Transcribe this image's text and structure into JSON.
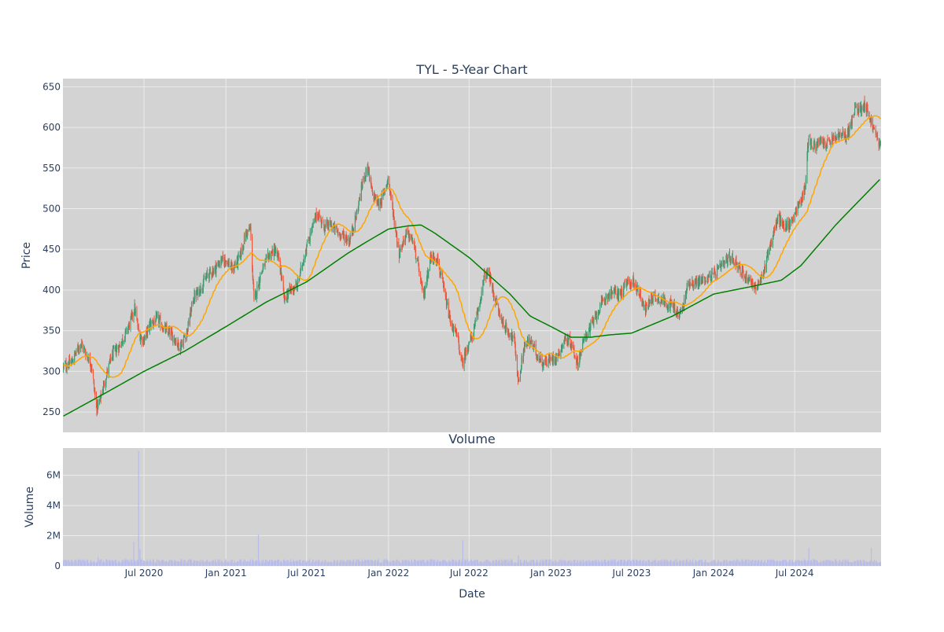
{
  "chart_data": [
    {
      "type": "candlestick",
      "title": "TYL - 5-Year Chart",
      "ylabel": "Price",
      "ylim": [
        225,
        660
      ],
      "yticks": [
        250,
        300,
        350,
        400,
        450,
        500,
        550,
        600,
        650
      ],
      "xlim": [
        "2020-01-01",
        "2025-01-11"
      ],
      "grid": true,
      "legend": "none",
      "colors": {
        "background": "#d3d3d3",
        "grid": "#ebebeb",
        "increasing": "#3d9970",
        "decreasing": "#ef553b",
        "ma_short": "#ffa500",
        "ma_long": "#008000",
        "text": "#2a3f5f"
      },
      "price_path": [
        [
          "2020-01-02",
          305
        ],
        [
          "2020-01-20",
          311
        ],
        [
          "2020-02-10",
          335
        ],
        [
          "2020-02-25",
          318
        ],
        [
          "2020-03-05",
          308
        ],
        [
          "2020-03-16",
          255
        ],
        [
          "2020-03-23",
          262
        ],
        [
          "2020-04-05",
          290
        ],
        [
          "2020-04-20",
          320
        ],
        [
          "2020-05-05",
          330
        ],
        [
          "2020-05-20",
          345
        ],
        [
          "2020-06-01",
          362
        ],
        [
          "2020-06-10",
          378
        ],
        [
          "2020-06-20",
          345
        ],
        [
          "2020-06-30",
          338
        ],
        [
          "2020-07-15",
          358
        ],
        [
          "2020-08-01",
          365
        ],
        [
          "2020-08-15",
          352
        ],
        [
          "2020-09-01",
          345
        ],
        [
          "2020-09-20",
          330
        ],
        [
          "2020-10-05",
          348
        ],
        [
          "2020-10-20",
          390
        ],
        [
          "2020-11-05",
          402
        ],
        [
          "2020-11-20",
          418
        ],
        [
          "2020-12-05",
          425
        ],
        [
          "2020-12-20",
          435
        ],
        [
          "2021-01-01",
          438
        ],
        [
          "2021-01-15",
          425
        ],
        [
          "2021-02-01",
          440
        ],
        [
          "2021-02-15",
          470
        ],
        [
          "2021-02-25",
          475
        ],
        [
          "2021-03-05",
          385
        ],
        [
          "2021-03-20",
          420
        ],
        [
          "2021-04-05",
          440
        ],
        [
          "2021-04-20",
          450
        ],
        [
          "2021-05-01",
          435
        ],
        [
          "2021-05-12",
          388
        ],
        [
          "2021-05-25",
          400
        ],
        [
          "2021-06-10",
          405
        ],
        [
          "2021-06-25",
          440
        ],
        [
          "2021-07-10",
          470
        ],
        [
          "2021-07-25",
          495
        ],
        [
          "2021-08-10",
          478
        ],
        [
          "2021-08-25",
          480
        ],
        [
          "2021-09-10",
          470
        ],
        [
          "2021-09-25",
          465
        ],
        [
          "2021-10-05",
          460
        ],
        [
          "2021-10-20",
          490
        ],
        [
          "2021-11-05",
          535
        ],
        [
          "2021-11-15",
          552
        ],
        [
          "2021-11-25",
          520
        ],
        [
          "2021-12-10",
          505
        ],
        [
          "2021-12-20",
          515
        ],
        [
          "2021-12-31",
          538
        ],
        [
          "2022-01-10",
          500
        ],
        [
          "2022-01-25",
          445
        ],
        [
          "2022-02-10",
          470
        ],
        [
          "2022-02-25",
          460
        ],
        [
          "2022-03-10",
          425
        ],
        [
          "2022-03-20",
          390
        ],
        [
          "2022-04-05",
          440
        ],
        [
          "2022-04-20",
          440
        ],
        [
          "2022-05-05",
          400
        ],
        [
          "2022-05-20",
          360
        ],
        [
          "2022-06-05",
          342
        ],
        [
          "2022-06-15",
          308
        ],
        [
          "2022-06-30",
          335
        ],
        [
          "2022-07-10",
          345
        ],
        [
          "2022-07-25",
          385
        ],
        [
          "2022-08-05",
          420
        ],
        [
          "2022-08-15",
          418
        ],
        [
          "2022-08-25",
          395
        ],
        [
          "2022-09-10",
          365
        ],
        [
          "2022-09-25",
          350
        ],
        [
          "2022-10-10",
          340
        ],
        [
          "2022-10-20",
          285
        ],
        [
          "2022-11-01",
          330
        ],
        [
          "2022-11-15",
          338
        ],
        [
          "2022-12-01",
          320
        ],
        [
          "2022-12-15",
          310
        ],
        [
          "2023-01-01",
          315
        ],
        [
          "2023-01-15",
          318
        ],
        [
          "2023-02-01",
          340
        ],
        [
          "2023-02-15",
          335
        ],
        [
          "2023-03-01",
          310
        ],
        [
          "2023-03-20",
          345
        ],
        [
          "2023-04-05",
          360
        ],
        [
          "2023-04-20",
          378
        ],
        [
          "2023-05-05",
          392
        ],
        [
          "2023-05-20",
          398
        ],
        [
          "2023-06-05",
          395
        ],
        [
          "2023-06-20",
          408
        ],
        [
          "2023-07-05",
          410
        ],
        [
          "2023-07-20",
          395
        ],
        [
          "2023-08-01",
          375
        ],
        [
          "2023-08-15",
          392
        ],
        [
          "2023-09-01",
          390
        ],
        [
          "2023-09-15",
          385
        ],
        [
          "2023-10-01",
          380
        ],
        [
          "2023-10-15",
          368
        ],
        [
          "2023-10-25",
          380
        ],
        [
          "2023-11-05",
          410
        ],
        [
          "2023-11-20",
          408
        ],
        [
          "2023-12-05",
          412
        ],
        [
          "2023-12-20",
          415
        ],
        [
          "2024-01-05",
          420
        ],
        [
          "2024-01-20",
          430
        ],
        [
          "2024-02-05",
          440
        ],
        [
          "2024-02-20",
          435
        ],
        [
          "2024-03-05",
          420
        ],
        [
          "2024-03-20",
          415
        ],
        [
          "2024-04-05",
          402
        ],
        [
          "2024-04-20",
          415
        ],
        [
          "2024-05-01",
          445
        ],
        [
          "2024-05-15",
          470
        ],
        [
          "2024-05-25",
          490
        ],
        [
          "2024-06-05",
          478
        ],
        [
          "2024-06-20",
          480
        ],
        [
          "2024-07-01",
          495
        ],
        [
          "2024-07-15",
          510
        ],
        [
          "2024-07-25",
          528
        ],
        [
          "2024-08-01",
          590
        ],
        [
          "2024-08-10",
          575
        ],
        [
          "2024-08-25",
          582
        ],
        [
          "2024-09-10",
          580
        ],
        [
          "2024-09-25",
          585
        ],
        [
          "2024-10-10",
          590
        ],
        [
          "2024-10-25",
          590
        ],
        [
          "2024-11-05",
          605
        ],
        [
          "2024-11-15",
          625
        ],
        [
          "2024-11-25",
          622
        ],
        [
          "2024-12-05",
          630
        ],
        [
          "2024-12-15",
          615
        ],
        [
          "2024-12-25",
          598
        ],
        [
          "2025-01-10",
          577
        ]
      ],
      "ma_long_path": [
        [
          "2020-01-02",
          245
        ],
        [
          "2020-04-01",
          272
        ],
        [
          "2020-07-01",
          300
        ],
        [
          "2020-10-01",
          325
        ],
        [
          "2021-01-01",
          355
        ],
        [
          "2021-04-01",
          385
        ],
        [
          "2021-07-01",
          410
        ],
        [
          "2021-10-01",
          445
        ],
        [
          "2021-11-15",
          460
        ],
        [
          "2022-01-01",
          475
        ],
        [
          "2022-02-15",
          479
        ],
        [
          "2022-03-15",
          480
        ],
        [
          "2022-04-15",
          470
        ],
        [
          "2022-07-01",
          440
        ],
        [
          "2022-10-01",
          395
        ],
        [
          "2022-11-15",
          368
        ],
        [
          "2023-01-01",
          355
        ],
        [
          "2023-02-15",
          342
        ],
        [
          "2023-04-01",
          342
        ],
        [
          "2023-05-15",
          345
        ],
        [
          "2023-07-01",
          347
        ],
        [
          "2023-10-01",
          368
        ],
        [
          "2024-01-01",
          395
        ],
        [
          "2024-04-01",
          405
        ],
        [
          "2024-06-01",
          412
        ],
        [
          "2024-07-15",
          430
        ],
        [
          "2024-10-01",
          480
        ],
        [
          "2025-01-10",
          537
        ]
      ],
      "ma_short_smoothing_days": 45
    },
    {
      "type": "bar",
      "title": "Volume",
      "xlabel": "Date",
      "ylabel": "Volume",
      "ylim": [
        0,
        7800000
      ],
      "yticks": [
        0,
        2000000,
        4000000,
        6000000
      ],
      "ytick_labels": [
        "0",
        "2M",
        "4M",
        "6M"
      ],
      "xticks": [
        "2020-07-01",
        "2021-01-01",
        "2021-07-01",
        "2022-01-01",
        "2022-07-01",
        "2023-01-01",
        "2023-07-01",
        "2024-01-01",
        "2024-07-01"
      ],
      "xtick_labels": [
        "Jul 2020",
        "Jan 2021",
        "Jul 2021",
        "Jan 2022",
        "Jul 2022",
        "Jan 2023",
        "Jul 2023",
        "Jan 2024",
        "Jul 2024"
      ],
      "baseline_volume": 300000,
      "spikes": [
        [
          "2020-06-08",
          1600000
        ],
        [
          "2020-06-19",
          7600000
        ],
        [
          "2020-06-22",
          1100000
        ],
        [
          "2021-03-15",
          2100000
        ],
        [
          "2022-06-17",
          1700000
        ],
        [
          "2024-08-02",
          1200000
        ],
        [
          "2024-12-20",
          1200000
        ],
        [
          "2020-03-20",
          600000
        ],
        [
          "2022-10-20",
          700000
        ]
      ],
      "color": "#b8bce8"
    }
  ]
}
